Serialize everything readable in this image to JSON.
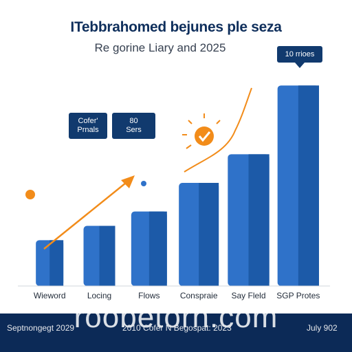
{
  "title": "ITebbrahomed bejunes ple seza",
  "subtitle": "Re gorine Liary and 2025",
  "chart_data": {
    "type": "bar",
    "categories": [
      "Wieword",
      "Locing",
      "Flows",
      "Conspraie",
      "Say Fleld",
      "SGP Protes"
    ],
    "values": [
      8,
      10.5,
      13,
      18,
      23,
      35
    ],
    "ylim": [
      0,
      36
    ],
    "grid": false,
    "legend": "none",
    "colors": {
      "bar": "#2f72c9",
      "bar_shade": "#1c5aa8",
      "accent": "#f28c1a"
    }
  },
  "callouts": {
    "a": {
      "line1": "Cofer'",
      "line2": "Prnals"
    },
    "b": {
      "line1": "80",
      "line2": "Sers"
    },
    "top": "10 rrioes"
  },
  "icons": {
    "check": "check-circle-icon"
  },
  "footer": {
    "left": "Septnongegt 2029",
    "middle": "2010 Cofer N Begospat: 2023",
    "right": "July 902",
    "watermark": "roobetorn.com"
  }
}
